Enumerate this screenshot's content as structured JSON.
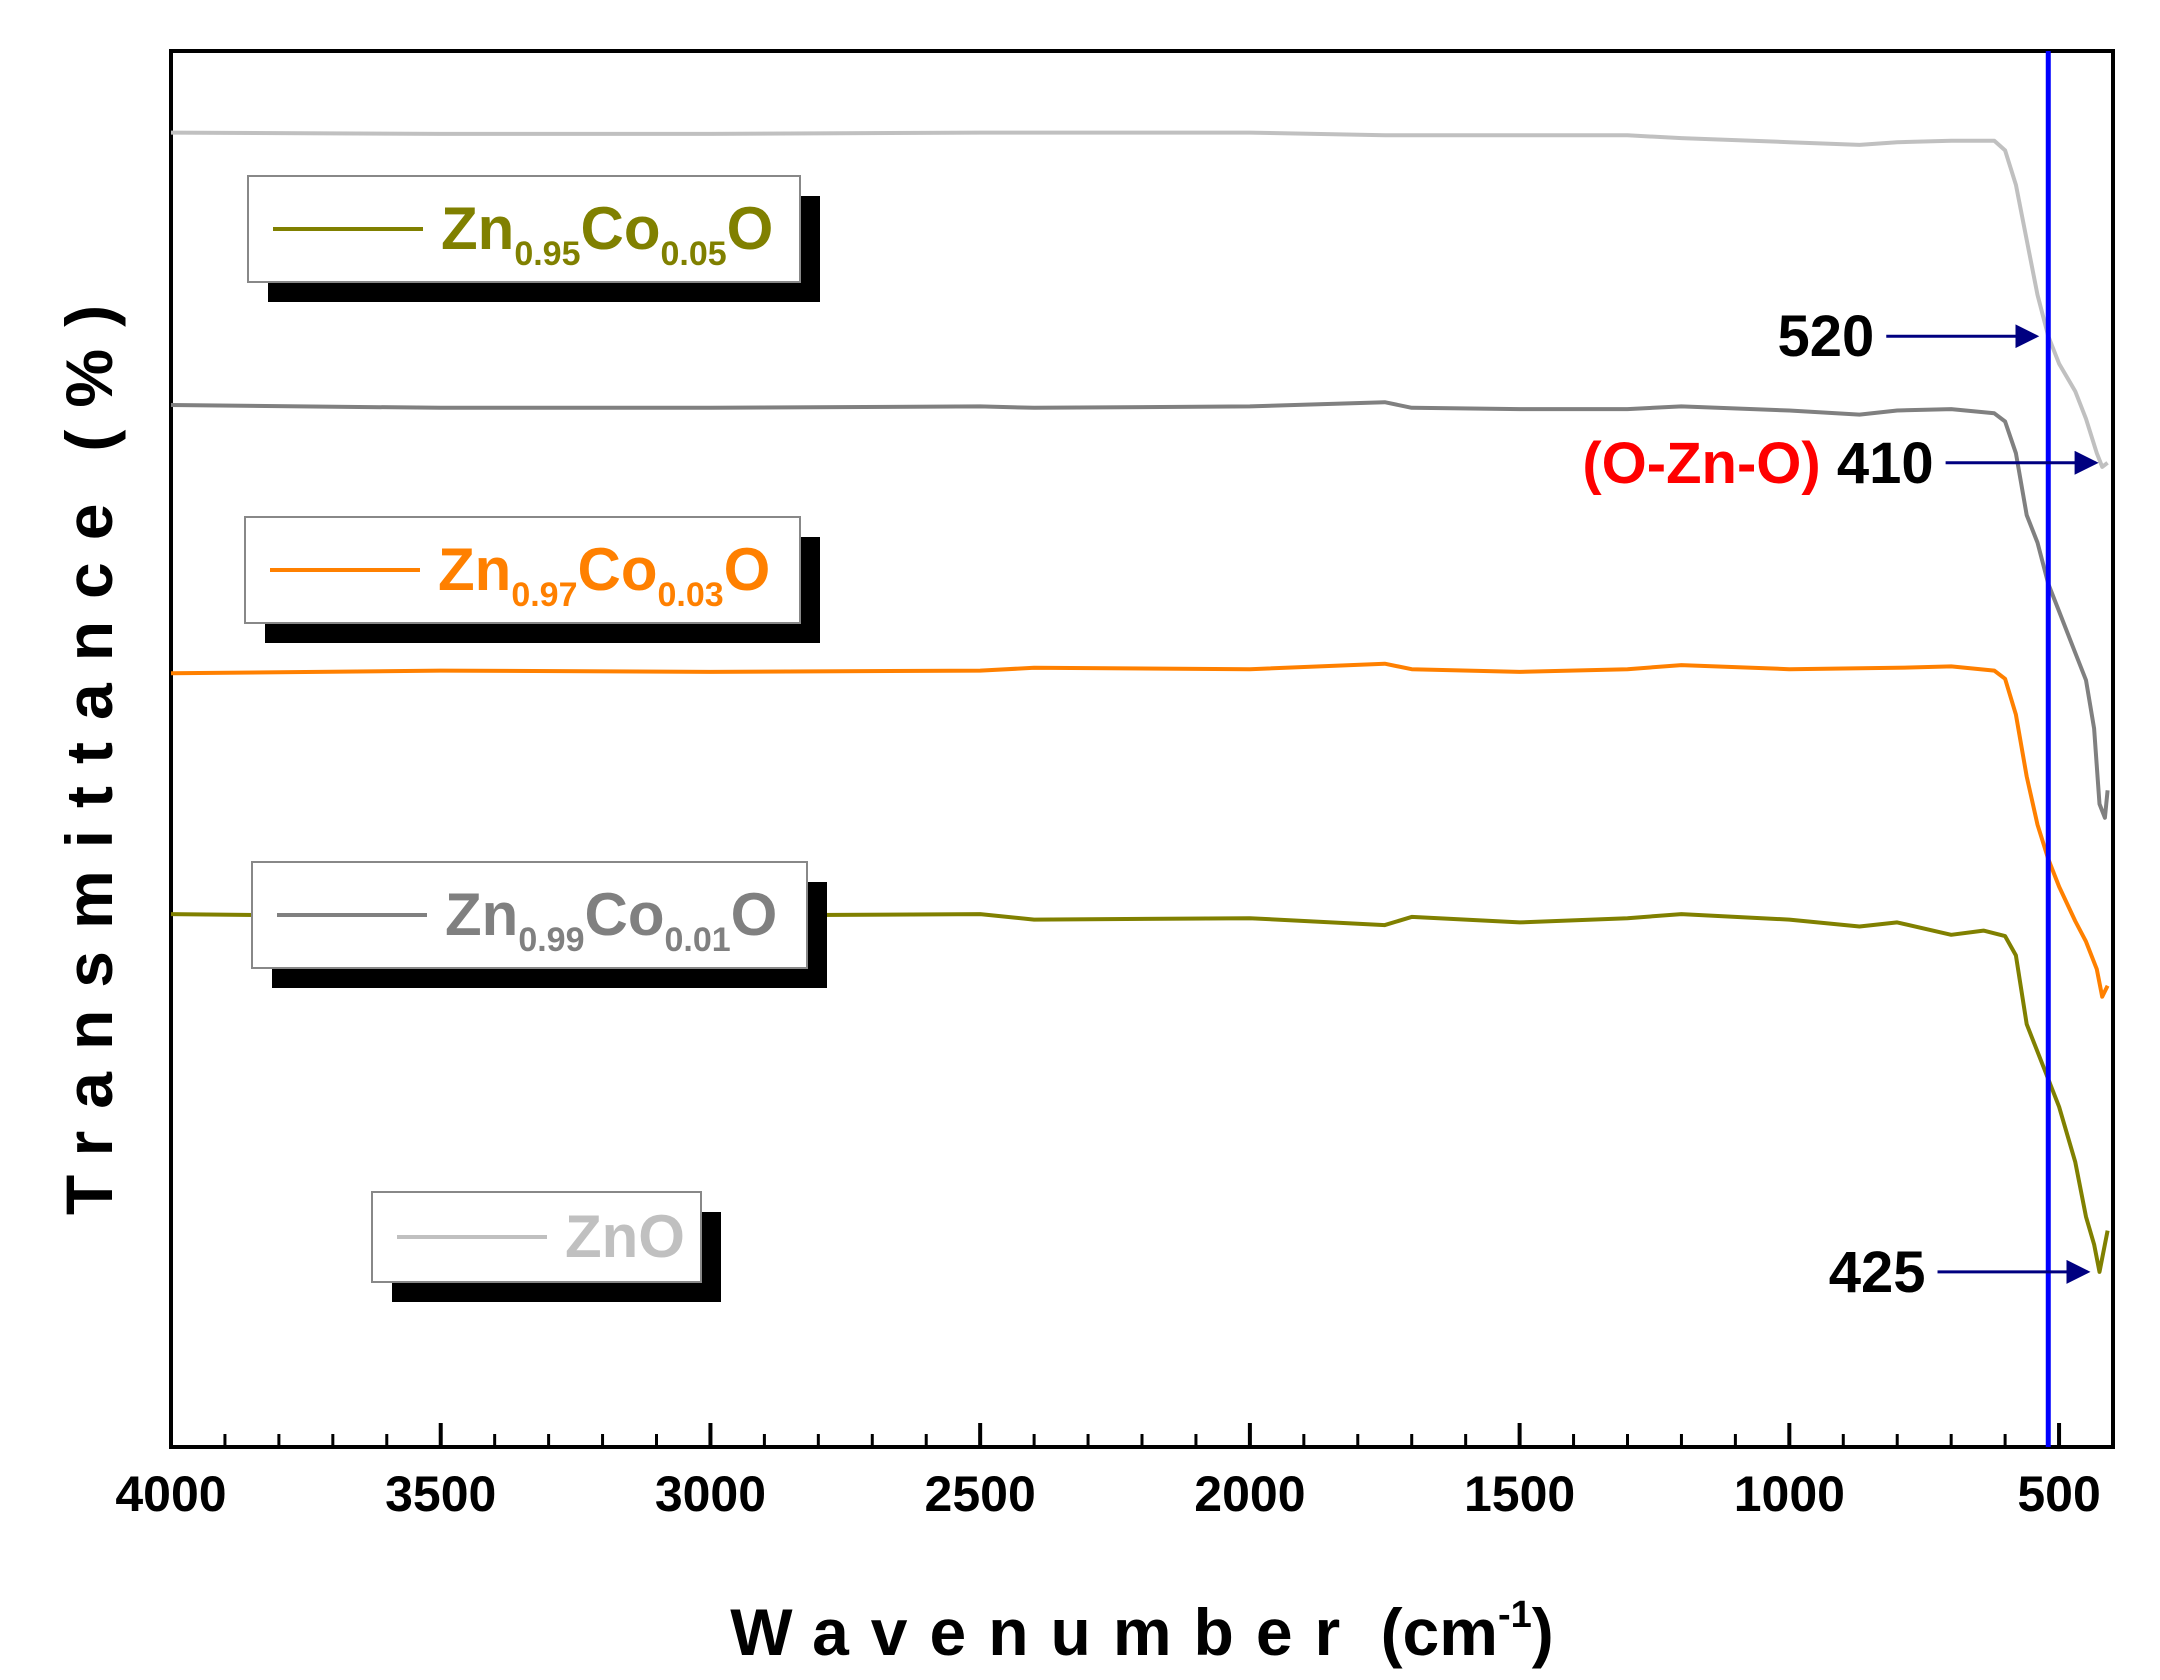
{
  "chart_data": {
    "type": "line",
    "title": "",
    "xlabel": "Wavenumber (cm-1)",
    "xlabel_parts": {
      "main": "Wavenumber",
      "open": " (cm",
      "sup": "-1",
      "close": ")"
    },
    "ylabel": "Transmittance (%)",
    "ylabel_parts": {
      "main": "Transmittance",
      "paren": "(%)"
    },
    "xlim": [
      4000,
      400
    ],
    "x_reversed": true,
    "x_ticks": [
      4000,
      3500,
      3000,
      2500,
      2000,
      1500,
      1000,
      500
    ],
    "x_tick_labels": [
      "4000",
      "3500",
      "3000",
      "2500",
      "2000",
      "1500",
      "1000",
      "500"
    ],
    "y_ticks_shown": false,
    "grid": false,
    "series": [
      {
        "name": "Zn0.95Co0.05O",
        "legend_parts": {
          "a": "Zn",
          "sub1": "0.95",
          "b": "Co",
          "sub2": "0.05",
          "c": "O"
        },
        "color": "#808000",
        "points": [
          [
            4000,
            62
          ],
          [
            3500,
            62.2
          ],
          [
            3000,
            62.1
          ],
          [
            2500,
            62.0
          ],
          [
            2400,
            62.4
          ],
          [
            2000,
            62.3
          ],
          [
            1750,
            62.8
          ],
          [
            1700,
            62.2
          ],
          [
            1500,
            62.6
          ],
          [
            1300,
            62.3
          ],
          [
            1200,
            62.0
          ],
          [
            1000,
            62.4
          ],
          [
            870,
            62.9
          ],
          [
            800,
            62.6
          ],
          [
            700,
            63.5
          ],
          [
            640,
            63.2
          ],
          [
            600,
            63.6
          ],
          [
            580,
            65
          ],
          [
            560,
            70
          ],
          [
            540,
            72
          ],
          [
            520,
            74
          ],
          [
            500,
            76
          ],
          [
            470,
            80
          ],
          [
            450,
            84
          ],
          [
            435,
            86
          ],
          [
            425,
            88
          ],
          [
            415,
            86
          ],
          [
            410,
            85
          ]
        ]
      },
      {
        "name": "Zn0.97Co0.03O",
        "legend_parts": {
          "a": "Zn",
          "sub1": "0.97",
          "b": "Co",
          "sub2": "0.03",
          "c": "O"
        },
        "color": "#ff8000",
        "points": [
          [
            4000,
            44.5
          ],
          [
            3500,
            44.3
          ],
          [
            3000,
            44.4
          ],
          [
            2500,
            44.3
          ],
          [
            2400,
            44.1
          ],
          [
            2000,
            44.2
          ],
          [
            1750,
            43.8
          ],
          [
            1700,
            44.2
          ],
          [
            1500,
            44.4
          ],
          [
            1300,
            44.2
          ],
          [
            1200,
            43.9
          ],
          [
            1000,
            44.2
          ],
          [
            800,
            44.1
          ],
          [
            700,
            44.0
          ],
          [
            620,
            44.3
          ],
          [
            600,
            44.9
          ],
          [
            580,
            47.5
          ],
          [
            560,
            52
          ],
          [
            540,
            55.5
          ],
          [
            520,
            58
          ],
          [
            500,
            60
          ],
          [
            470,
            62.5
          ],
          [
            450,
            64
          ],
          [
            430,
            66
          ],
          [
            420,
            68
          ],
          [
            410,
            67.2
          ]
        ]
      },
      {
        "name": "Zn0.99Co0.01O",
        "legend_parts": {
          "a": "Zn",
          "sub1": "0.99",
          "b": "Co",
          "sub2": "0.01",
          "c": "O"
        },
        "color": "#808080",
        "points": [
          [
            4000,
            25
          ],
          [
            3500,
            25.2
          ],
          [
            3000,
            25.2
          ],
          [
            2500,
            25.1
          ],
          [
            2400,
            25.2
          ],
          [
            2000,
            25.1
          ],
          [
            1750,
            24.8
          ],
          [
            1700,
            25.2
          ],
          [
            1500,
            25.3
          ],
          [
            1300,
            25.3
          ],
          [
            1200,
            25.1
          ],
          [
            1000,
            25.4
          ],
          [
            870,
            25.7
          ],
          [
            800,
            25.4
          ],
          [
            700,
            25.3
          ],
          [
            620,
            25.6
          ],
          [
            600,
            26.2
          ],
          [
            580,
            28.5
          ],
          [
            560,
            33
          ],
          [
            540,
            35
          ],
          [
            520,
            38
          ],
          [
            500,
            40
          ],
          [
            470,
            43
          ],
          [
            450,
            45
          ],
          [
            435,
            48.5
          ],
          [
            425,
            54
          ],
          [
            415,
            55
          ],
          [
            410,
            53
          ]
        ]
      },
      {
        "name": "ZnO",
        "legend_parts": {
          "a": "ZnO",
          "sub1": "",
          "b": "",
          "sub2": "",
          "c": ""
        },
        "color": "#c0c0c0",
        "points": [
          [
            4000,
            5.2
          ],
          [
            3500,
            5.3
          ],
          [
            3000,
            5.3
          ],
          [
            2500,
            5.2
          ],
          [
            2400,
            5.2
          ],
          [
            2000,
            5.2
          ],
          [
            1750,
            5.4
          ],
          [
            1500,
            5.4
          ],
          [
            1300,
            5.4
          ],
          [
            1200,
            5.6
          ],
          [
            1000,
            5.9
          ],
          [
            870,
            6.1
          ],
          [
            800,
            5.9
          ],
          [
            700,
            5.8
          ],
          [
            620,
            5.8
          ],
          [
            600,
            6.5
          ],
          [
            580,
            9
          ],
          [
            560,
            13
          ],
          [
            540,
            17
          ],
          [
            520,
            20
          ],
          [
            500,
            22
          ],
          [
            470,
            24
          ],
          [
            450,
            26
          ],
          [
            430,
            28.5
          ],
          [
            420,
            29.5
          ],
          [
            410,
            29.2
          ]
        ]
      }
    ],
    "reference_line": {
      "x": 520,
      "color": "#0000ff"
    },
    "annotations": [
      {
        "text": "425",
        "x": 425,
        "series": "Zn0.95Co0.05O",
        "prefix": "",
        "prefix_color": ""
      },
      {
        "text": "520",
        "x": 520,
        "series": "ZnO",
        "prefix": "",
        "prefix_color": ""
      },
      {
        "text": "410",
        "x": 410,
        "series": "ZnO",
        "prefix": "(O-Zn-O)",
        "prefix_color": "#ff0000"
      }
    ],
    "legend_placement": "left, one box beside each curve",
    "arrow_color": "#000080"
  }
}
